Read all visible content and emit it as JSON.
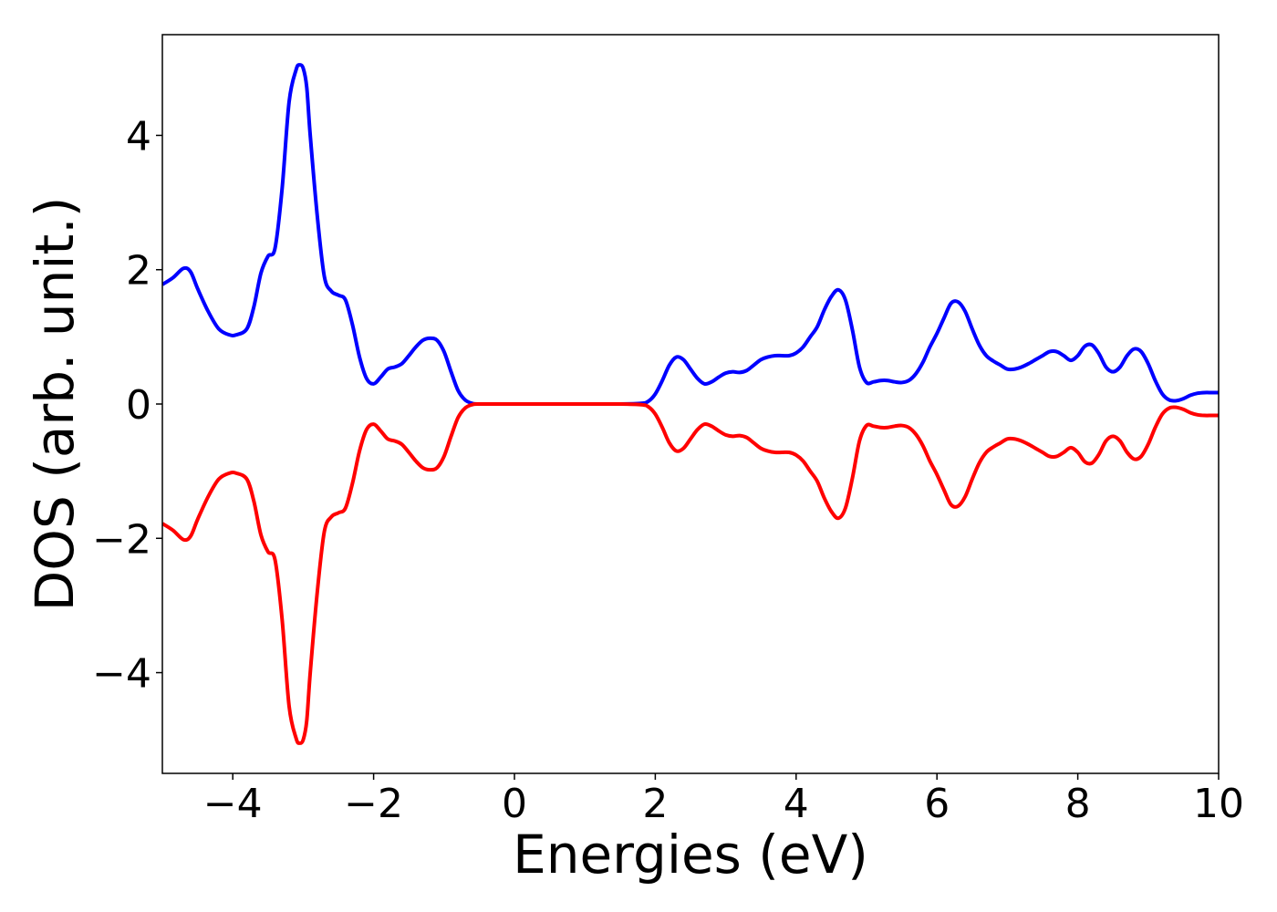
{
  "chart_data": {
    "type": "line",
    "title": "",
    "xlabel": "Energies (eV)",
    "ylabel": "DOS (arb. unit.)",
    "xlim": [
      -5,
      10
    ],
    "ylim": [
      -5.5,
      5.5
    ],
    "grid": false,
    "xticks": [
      -4,
      -2,
      0,
      2,
      4,
      6,
      8,
      10
    ],
    "yticks": [
      -4,
      -2,
      0,
      2,
      4
    ],
    "xtick_labels": [
      "−4",
      "−2",
      "0",
      "2",
      "4",
      "6",
      "8",
      "10"
    ],
    "ytick_labels": [
      "−4",
      "−2",
      "0",
      "2",
      "4"
    ],
    "series": [
      {
        "color": "#0000ff",
        "x": [
          -5,
          -4.85,
          -4.7,
          -4.6,
          -4.5,
          -4.35,
          -4.2,
          -4.05,
          -3.95,
          -3.8,
          -3.7,
          -3.6,
          -3.5,
          -3.4,
          -3.3,
          -3.2,
          -3.1,
          -3.05,
          -3.0,
          -2.95,
          -2.9,
          -2.8,
          -2.7,
          -2.6,
          -2.5,
          -2.4,
          -2.3,
          -2.2,
          -2.1,
          -2.0,
          -1.9,
          -1.8,
          -1.7,
          -1.6,
          -1.5,
          -1.4,
          -1.3,
          -1.2,
          -1.1,
          -1.0,
          -0.9,
          -0.8,
          -0.7,
          -0.6,
          -0.5,
          0.0,
          0.5,
          1.0,
          1.5,
          1.8,
          1.9,
          2.0,
          2.1,
          2.2,
          2.3,
          2.4,
          2.5,
          2.6,
          2.7,
          2.8,
          2.9,
          3.0,
          3.1,
          3.2,
          3.3,
          3.4,
          3.5,
          3.6,
          3.7,
          3.8,
          3.9,
          4.0,
          4.1,
          4.2,
          4.3,
          4.4,
          4.5,
          4.6,
          4.7,
          4.8,
          4.9,
          5.0,
          5.1,
          5.2,
          5.3,
          5.4,
          5.5,
          5.6,
          5.7,
          5.8,
          5.9,
          6.0,
          6.1,
          6.2,
          6.3,
          6.4,
          6.5,
          6.6,
          6.7,
          6.8,
          6.9,
          7.0,
          7.1,
          7.2,
          7.3,
          7.4,
          7.5,
          7.6,
          7.7,
          7.8,
          7.9,
          8.0,
          8.1,
          8.2,
          8.3,
          8.4,
          8.5,
          8.6,
          8.7,
          8.8,
          8.9,
          9.0,
          9.1,
          9.2,
          9.3,
          9.4,
          9.5,
          9.6,
          9.7,
          9.8,
          9.9,
          10.0
        ],
        "values": [
          1.78,
          1.88,
          2.02,
          1.97,
          1.72,
          1.38,
          1.12,
          1.03,
          1.03,
          1.12,
          1.45,
          1.95,
          2.2,
          2.32,
          3.2,
          4.5,
          4.98,
          5.05,
          5.0,
          4.72,
          4.0,
          2.8,
          1.9,
          1.68,
          1.62,
          1.55,
          1.18,
          0.7,
          0.38,
          0.3,
          0.4,
          0.52,
          0.55,
          0.6,
          0.72,
          0.85,
          0.95,
          0.98,
          0.95,
          0.78,
          0.48,
          0.2,
          0.06,
          0.01,
          0.0,
          0.0,
          0.0,
          0.0,
          0.0,
          0.01,
          0.04,
          0.15,
          0.35,
          0.58,
          0.7,
          0.66,
          0.52,
          0.38,
          0.3,
          0.33,
          0.4,
          0.46,
          0.48,
          0.47,
          0.5,
          0.58,
          0.66,
          0.7,
          0.72,
          0.72,
          0.72,
          0.76,
          0.85,
          1.0,
          1.15,
          1.4,
          1.6,
          1.7,
          1.55,
          1.1,
          0.55,
          0.32,
          0.33,
          0.35,
          0.35,
          0.33,
          0.32,
          0.35,
          0.45,
          0.62,
          0.85,
          1.05,
          1.28,
          1.5,
          1.52,
          1.38,
          1.12,
          0.88,
          0.72,
          0.64,
          0.58,
          0.52,
          0.52,
          0.55,
          0.6,
          0.66,
          0.72,
          0.78,
          0.78,
          0.72,
          0.65,
          0.72,
          0.86,
          0.88,
          0.75,
          0.55,
          0.48,
          0.55,
          0.72,
          0.82,
          0.78,
          0.6,
          0.35,
          0.15,
          0.06,
          0.05,
          0.08,
          0.13,
          0.16,
          0.17,
          0.17,
          0.17
        ]
      },
      {
        "color": "#ff0000",
        "x": [
          -5,
          -4.85,
          -4.7,
          -4.6,
          -4.5,
          -4.35,
          -4.2,
          -4.05,
          -3.95,
          -3.8,
          -3.7,
          -3.6,
          -3.5,
          -3.4,
          -3.3,
          -3.2,
          -3.1,
          -3.05,
          -3.0,
          -2.95,
          -2.9,
          -2.8,
          -2.7,
          -2.6,
          -2.5,
          -2.4,
          -2.3,
          -2.2,
          -2.1,
          -2.0,
          -1.9,
          -1.8,
          -1.7,
          -1.6,
          -1.5,
          -1.4,
          -1.3,
          -1.2,
          -1.1,
          -1.0,
          -0.9,
          -0.8,
          -0.7,
          -0.6,
          -0.5,
          0.0,
          0.5,
          1.0,
          1.5,
          1.8,
          1.9,
          2.0,
          2.1,
          2.2,
          2.3,
          2.4,
          2.5,
          2.6,
          2.7,
          2.8,
          2.9,
          3.0,
          3.1,
          3.2,
          3.3,
          3.4,
          3.5,
          3.6,
          3.7,
          3.8,
          3.9,
          4.0,
          4.1,
          4.2,
          4.3,
          4.4,
          4.5,
          4.6,
          4.7,
          4.8,
          4.9,
          5.0,
          5.1,
          5.2,
          5.3,
          5.4,
          5.5,
          5.6,
          5.7,
          5.8,
          5.9,
          6.0,
          6.1,
          6.2,
          6.3,
          6.4,
          6.5,
          6.6,
          6.7,
          6.8,
          6.9,
          7.0,
          7.1,
          7.2,
          7.3,
          7.4,
          7.5,
          7.6,
          7.7,
          7.8,
          7.9,
          8.0,
          8.1,
          8.2,
          8.3,
          8.4,
          8.5,
          8.6,
          8.7,
          8.8,
          8.9,
          9.0,
          9.1,
          9.2,
          9.3,
          9.4,
          9.5,
          9.6,
          9.7,
          9.8,
          9.9,
          10.0
        ],
        "values": [
          -1.78,
          -1.88,
          -2.02,
          -1.97,
          -1.72,
          -1.38,
          -1.12,
          -1.03,
          -1.03,
          -1.12,
          -1.45,
          -1.95,
          -2.2,
          -2.32,
          -3.2,
          -4.5,
          -4.98,
          -5.05,
          -5.0,
          -4.72,
          -4.0,
          -2.8,
          -1.9,
          -1.68,
          -1.62,
          -1.55,
          -1.18,
          -0.7,
          -0.38,
          -0.3,
          -0.4,
          -0.52,
          -0.55,
          -0.6,
          -0.72,
          -0.85,
          -0.95,
          -0.98,
          -0.95,
          -0.78,
          -0.48,
          -0.2,
          -0.06,
          -0.01,
          0.0,
          0.0,
          0.0,
          0.0,
          0.0,
          -0.01,
          -0.04,
          -0.15,
          -0.35,
          -0.58,
          -0.7,
          -0.66,
          -0.52,
          -0.38,
          -0.3,
          -0.33,
          -0.4,
          -0.46,
          -0.48,
          -0.47,
          -0.5,
          -0.58,
          -0.66,
          -0.7,
          -0.72,
          -0.72,
          -0.72,
          -0.76,
          -0.85,
          -1.0,
          -1.15,
          -1.4,
          -1.6,
          -1.7,
          -1.55,
          -1.1,
          -0.55,
          -0.32,
          -0.33,
          -0.35,
          -0.35,
          -0.33,
          -0.32,
          -0.35,
          -0.45,
          -0.62,
          -0.85,
          -1.05,
          -1.28,
          -1.5,
          -1.52,
          -1.38,
          -1.12,
          -0.88,
          -0.72,
          -0.64,
          -0.58,
          -0.52,
          -0.52,
          -0.55,
          -0.6,
          -0.66,
          -0.72,
          -0.78,
          -0.78,
          -0.72,
          -0.65,
          -0.72,
          -0.86,
          -0.88,
          -0.75,
          -0.55,
          -0.48,
          -0.55,
          -0.72,
          -0.82,
          -0.78,
          -0.6,
          -0.35,
          -0.15,
          -0.06,
          -0.05,
          -0.08,
          -0.13,
          -0.16,
          -0.17,
          -0.17,
          -0.17
        ]
      }
    ]
  }
}
